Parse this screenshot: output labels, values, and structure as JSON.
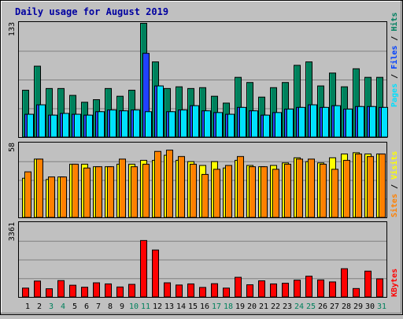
{
  "chart_data": [
    {
      "type": "bar",
      "title": "Daily usage for August 2019",
      "categories": [
        "1",
        "2",
        "3",
        "4",
        "5",
        "6",
        "7",
        "8",
        "9",
        "10",
        "11",
        "12",
        "13",
        "14",
        "15",
        "16",
        "17",
        "18",
        "19",
        "20",
        "21",
        "22",
        "23",
        "24",
        "25",
        "26",
        "27",
        "28",
        "29",
        "30",
        "31"
      ],
      "weekend_days": [
        "3",
        "4",
        "10",
        "11",
        "17",
        "18",
        "24",
        "25",
        "31"
      ],
      "ylabel_max": "133",
      "ylim": [
        0,
        133
      ],
      "right_label": [
        {
          "text": "Pages",
          "color": "#00e0ff"
        },
        {
          "text": " / ",
          "color": "#000000"
        },
        {
          "text": "Files",
          "color": "#0040ff"
        },
        {
          "text": " / ",
          "color": "#000000"
        },
        {
          "text": "Hits",
          "color": "#008060"
        }
      ],
      "series": [
        {
          "name": "Hits",
          "color": "#00805c",
          "values": [
            55,
            83,
            57,
            57,
            49,
            41,
            44,
            57,
            48,
            55,
            133,
            88,
            57,
            59,
            57,
            58,
            48,
            40,
            70,
            64,
            47,
            58,
            64,
            84,
            88,
            60,
            75,
            59,
            80,
            70,
            70
          ]
        },
        {
          "name": "Files",
          "color": "#2040ff",
          "values": [
            27,
            38,
            26,
            28,
            27,
            26,
            30,
            32,
            31,
            32,
            98,
            60,
            30,
            32,
            37,
            31,
            29,
            27,
            35,
            31,
            26,
            29,
            33,
            35,
            38,
            35,
            37,
            33,
            36,
            36,
            35
          ]
        },
        {
          "name": "Pages",
          "color": "#00e0ff",
          "values": [
            27,
            38,
            26,
            28,
            27,
            26,
            30,
            32,
            31,
            32,
            30,
            60,
            30,
            32,
            37,
            31,
            29,
            27,
            35,
            31,
            26,
            29,
            33,
            35,
            38,
            35,
            37,
            33,
            36,
            36,
            35
          ]
        }
      ]
    },
    {
      "type": "bar",
      "ylabel_max": "58",
      "ylim": [
        0,
        58
      ],
      "right_label": [
        {
          "text": "Sites",
          "color": "#ff8000"
        },
        {
          "text": " / ",
          "color": "#000000"
        },
        {
          "text": "Visits",
          "color": "#ffff00"
        }
      ],
      "series": [
        {
          "name": "Visits",
          "color": "#ffff00",
          "values": [
            31,
            46,
            30,
            32,
            42,
            42,
            40,
            40,
            42,
            42,
            45,
            45,
            49,
            45,
            44,
            41,
            44,
            39,
            45,
            41,
            40,
            41,
            43,
            47,
            44,
            43,
            47,
            50,
            51,
            50,
            50
          ]
        },
        {
          "name": "Sites",
          "color": "#ff8000",
          "values": [
            36,
            46,
            32,
            32,
            42,
            39,
            40,
            40,
            46,
            40,
            42,
            52,
            53,
            48,
            42,
            34,
            38,
            41,
            48,
            40,
            40,
            38,
            42,
            46,
            46,
            42,
            38,
            45,
            50,
            48,
            50
          ]
        }
      ]
    },
    {
      "type": "bar",
      "ylabel_max": "3361",
      "ylim": [
        0,
        3361
      ],
      "right_label": [
        {
          "text": "KBytes",
          "color": "#ff0000"
        }
      ],
      "series": [
        {
          "name": "KBytes",
          "color": "#ff0000",
          "values": [
            420,
            740,
            390,
            760,
            550,
            460,
            660,
            610,
            470,
            590,
            2580,
            2150,
            660,
            560,
            610,
            450,
            620,
            420,
            910,
            570,
            750,
            610,
            640,
            780,
            960,
            790,
            700,
            1300,
            400,
            1190,
            840
          ]
        }
      ]
    }
  ]
}
